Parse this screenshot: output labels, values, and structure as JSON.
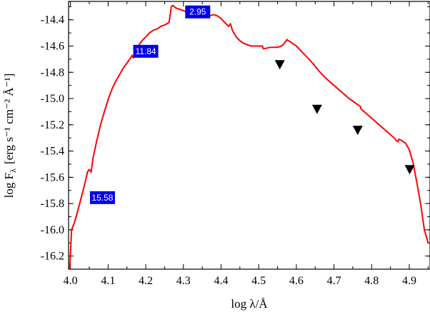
{
  "chart_data": {
    "type": "line",
    "xlabel": "log λ/Å",
    "ylabel": "log F",
    "ylabel_sub": "λ",
    "ylabel_units": "[erg s⁻¹ cm⁻² Å⁻¹]",
    "xlim": [
      3.995,
      4.955
    ],
    "ylim": [
      -16.3,
      -14.26
    ],
    "xticks": [
      4.0,
      4.1,
      4.2,
      4.3,
      4.4,
      4.5,
      4.6,
      4.7,
      4.8,
      4.9
    ],
    "xtick_labels": [
      "4.0",
      "4.1",
      "4.2",
      "4.3",
      "4.4",
      "4.5",
      "4.6",
      "4.7",
      "4.8",
      "4.9"
    ],
    "yticks": [
      -14.4,
      -14.6,
      -14.8,
      -15.0,
      -15.2,
      -15.4,
      -15.6,
      -15.8,
      -16.0,
      -16.2
    ],
    "ytick_labels": [
      "-14.4",
      "-14.6",
      "-14.8",
      "-15.0",
      "-15.2",
      "-15.4",
      "-15.6",
      "-15.8",
      "-16.0",
      "-16.2"
    ],
    "grid": false,
    "series": [
      {
        "type": "line",
        "color": "#ff0000",
        "x": [
          3.998,
          4.003,
          4.01,
          4.02,
          4.03,
          4.04,
          4.045,
          4.05,
          4.055,
          4.06,
          4.07,
          4.08,
          4.09,
          4.1,
          4.11,
          4.12,
          4.13,
          4.14,
          4.15,
          4.16,
          4.164,
          4.167,
          4.17,
          4.18,
          4.19,
          4.2,
          4.21,
          4.22,
          4.23,
          4.24,
          4.25,
          4.262,
          4.265,
          4.268,
          4.272,
          4.28,
          4.29,
          4.3,
          4.31,
          4.32,
          4.33,
          4.34,
          4.35,
          4.36,
          4.37,
          4.38,
          4.39,
          4.4,
          4.41,
          4.42,
          4.425,
          4.43,
          4.44,
          4.45,
          4.46,
          4.47,
          4.48,
          4.49,
          4.5,
          4.51,
          4.512,
          4.515,
          4.53,
          4.55,
          4.56,
          4.565,
          4.57,
          4.575,
          4.578,
          4.58,
          4.59,
          4.6,
          4.61,
          4.62,
          4.64,
          4.66,
          4.68,
          4.7,
          4.72,
          4.74,
          4.76,
          4.77,
          4.772,
          4.78,
          4.8,
          4.82,
          4.84,
          4.86,
          4.865,
          4.87,
          4.872,
          4.88,
          4.89,
          4.9,
          4.91,
          4.92,
          4.93,
          4.94,
          4.95
        ],
        "y": [
          -16.3,
          -16.0,
          -15.95,
          -15.85,
          -15.74,
          -15.63,
          -15.56,
          -15.54,
          -15.56,
          -15.45,
          -15.32,
          -15.2,
          -15.1,
          -15.01,
          -14.93,
          -14.87,
          -14.82,
          -14.77,
          -14.73,
          -14.69,
          -14.67,
          -14.69,
          -14.66,
          -14.6,
          -14.56,
          -14.53,
          -14.5,
          -14.48,
          -14.47,
          -14.45,
          -14.44,
          -14.42,
          -14.36,
          -14.3,
          -14.29,
          -14.31,
          -14.32,
          -14.33,
          -14.34,
          -14.34,
          -14.34,
          -14.36,
          -14.38,
          -14.37,
          -14.37,
          -14.36,
          -14.37,
          -14.39,
          -14.42,
          -14.45,
          -14.43,
          -14.48,
          -14.53,
          -14.56,
          -14.58,
          -14.59,
          -14.6,
          -14.6,
          -14.6,
          -14.6,
          -14.62,
          -14.62,
          -14.61,
          -14.61,
          -14.6,
          -14.59,
          -14.57,
          -14.55,
          -14.56,
          -14.56,
          -14.58,
          -14.6,
          -14.63,
          -14.66,
          -14.72,
          -14.79,
          -14.85,
          -14.9,
          -14.95,
          -15.0,
          -15.04,
          -15.06,
          -15.08,
          -15.1,
          -15.15,
          -15.2,
          -15.25,
          -15.3,
          -15.32,
          -15.33,
          -15.31,
          -15.32,
          -15.34,
          -15.39,
          -15.49,
          -15.64,
          -15.8,
          -16.0,
          -16.1
        ]
      }
    ],
    "upper_limits": {
      "marker": "filled downward triangle",
      "x": [
        4.556,
        4.655,
        4.763,
        4.901
      ],
      "y": [
        -14.74,
        -15.08,
        -15.24,
        -15.54
      ]
    },
    "annotations": [
      {
        "text": "2.95",
        "x": 4.338,
        "y": -14.34,
        "box_color": "#0000ee",
        "text_color": "#ffffff"
      },
      {
        "text": "11.84",
        "x": 4.2,
        "y": -14.64,
        "box_color": "#0000ee",
        "text_color": "#ffffff"
      },
      {
        "text": "15.58",
        "x": 4.085,
        "y": -15.755,
        "box_color": "#0000ee",
        "text_color": "#ffffff"
      }
    ]
  }
}
